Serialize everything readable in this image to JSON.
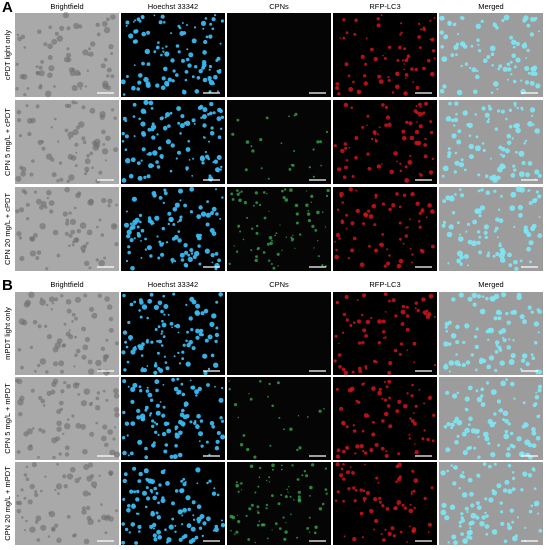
{
  "panels": [
    {
      "label": "A",
      "columns": [
        "Brightfield",
        "Hoechst 33342",
        "CPNs",
        "RFP-LC3",
        "Merged"
      ],
      "rows": [
        "cPDT light only",
        "CPN 5 mg/L + cPDT",
        "CPN 20 mg/L + cPDT"
      ]
    },
    {
      "label": "B",
      "columns": [
        "Brightfield",
        "Hoechst 33342",
        "CPNs",
        "RFP-LC3",
        "Merged"
      ],
      "rows": [
        "mPDT light only",
        "CPN 5 mg/L + mPDT",
        "CPN 20 mg/L + mPDT"
      ]
    }
  ]
}
